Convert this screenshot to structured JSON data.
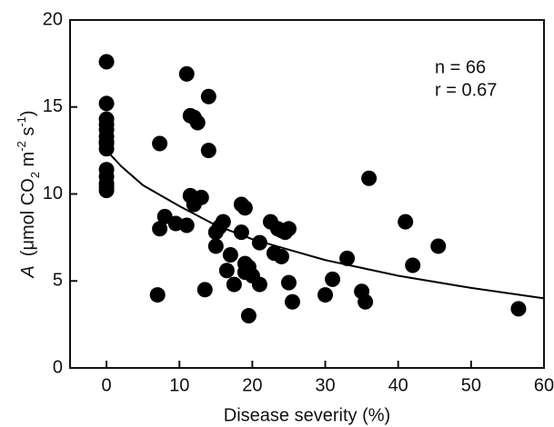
{
  "chart_data": {
    "type": "scatter",
    "xlabel": "Disease severity (%)",
    "ylabel": [
      {
        "text": "A",
        "style": "italic"
      },
      {
        "text": "(μmol CO",
        "style": "normal"
      },
      {
        "text": "2",
        "style": "sub"
      },
      {
        "text": " m",
        "style": "normal"
      },
      {
        "text": "-2",
        "style": "sup"
      },
      {
        "text": " s",
        "style": "normal"
      },
      {
        "text": "-1",
        "style": "sup"
      },
      {
        "text": ")",
        "style": "normal"
      }
    ],
    "annotations": [
      "n = 66",
      "r = 0.67"
    ],
    "xlim": [
      -5,
      60
    ],
    "ylim": [
      0,
      20
    ],
    "xticks": [
      0,
      10,
      20,
      30,
      40,
      50,
      60
    ],
    "yticks": [
      0,
      5,
      10,
      15,
      20
    ],
    "series": [
      {
        "color": "#000000",
        "x": [
          0,
          0,
          0,
          0,
          0,
          0,
          0,
          0,
          0,
          0,
          0,
          0,
          0,
          0,
          7,
          7.3,
          7.3,
          8,
          9.5,
          11,
          11,
          11.5,
          12,
          12.5,
          11.5,
          12,
          13,
          13.5,
          14,
          14,
          15,
          15,
          15.5,
          16,
          16.5,
          17,
          17.5,
          18.5,
          19,
          18.5,
          19,
          19,
          19.5,
          19.5,
          20,
          21,
          21,
          22.5,
          23,
          23.5,
          24,
          24,
          24.5,
          25,
          25,
          25.5,
          30,
          31,
          33,
          35,
          35.5,
          36,
          41,
          42,
          45.5,
          56.5
        ],
        "values": [
          17.6,
          15.2,
          14.3,
          14.0,
          13.7,
          13.3,
          12.9,
          11.4,
          11.0,
          10.4,
          10.2,
          10.6,
          12.6,
          13.0,
          4.2,
          12.9,
          8.0,
          8.7,
          8.3,
          8.2,
          16.9,
          14.5,
          14.4,
          14.1,
          9.9,
          9.4,
          9.8,
          4.5,
          15.6,
          12.5,
          7.0,
          7.8,
          8.1,
          8.4,
          5.6,
          6.5,
          4.8,
          9.4,
          9.2,
          7.8,
          6.0,
          5.5,
          5.8,
          3.0,
          5.3,
          4.8,
          7.2,
          8.4,
          6.6,
          8.0,
          6.4,
          7.9,
          7.8,
          8.0,
          4.9,
          3.8,
          4.2,
          5.1,
          6.3,
          4.4,
          3.8,
          10.9,
          8.4,
          5.9,
          7.0,
          3.4
        ]
      }
    ],
    "fit": {
      "color": "#000000",
      "x": [
        0,
        2,
        5,
        10,
        15,
        20,
        25,
        30,
        40,
        50,
        60
      ],
      "values": [
        12.5,
        11.6,
        10.5,
        9.3,
        8.2,
        7.4,
        6.8,
        6.2,
        5.3,
        4.6,
        4.0
      ]
    }
  }
}
